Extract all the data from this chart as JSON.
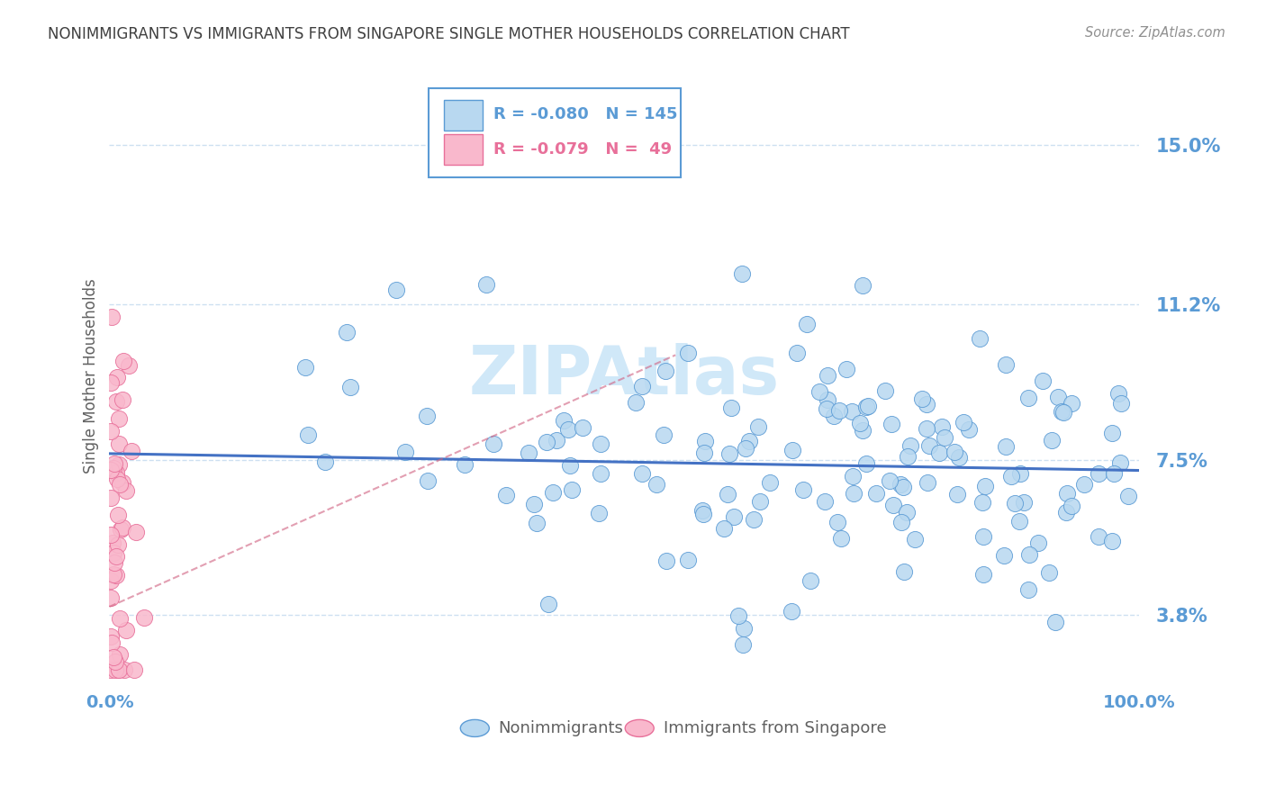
{
  "title": "NONIMMIGRANTS VS IMMIGRANTS FROM SINGAPORE SINGLE MOTHER HOUSEHOLDS CORRELATION CHART",
  "source": "Source: ZipAtlas.com",
  "ylabel": "Single Mother Households",
  "xlim": [
    0.0,
    1.0
  ],
  "ylim": [
    0.022,
    0.168
  ],
  "yticks": [
    0.038,
    0.075,
    0.112,
    0.15
  ],
  "ytick_labels": [
    "3.8%",
    "7.5%",
    "11.2%",
    "15.0%"
  ],
  "xtick_labels": [
    "0.0%",
    "100.0%"
  ],
  "legend_r1": "R = -0.080",
  "legend_n1": "N = 145",
  "legend_r2": "R = -0.079",
  "legend_n2": "N =  49",
  "blue_scatter_color": "#b8d8f0",
  "blue_edge_color": "#5b9bd5",
  "pink_scatter_color": "#f9b8cc",
  "pink_edge_color": "#e8709a",
  "blue_line_color": "#4472c4",
  "pink_line_color": "#d06080",
  "title_color": "#404040",
  "axis_tick_color": "#5b9bd5",
  "background_color": "#ffffff",
  "grid_color": "#c8ddf0",
  "source_color": "#909090",
  "watermark_color": "#d0e8f8",
  "label_color": "#606060",
  "nonimmig_label": "Nonimmigrants",
  "immig_label": "Immigrants from Singapore",
  "seed": 42
}
